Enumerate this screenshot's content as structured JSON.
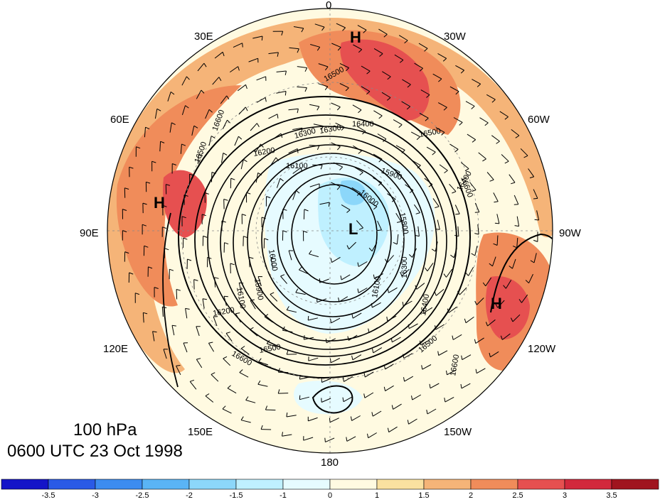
{
  "map": {
    "projection": "north-polar-stereographic",
    "level": "100 hPa",
    "valid_time": "0600 UTC 23 Oct 1998",
    "longitude_labels": [
      {
        "id": "lon-0",
        "text": "0"
      },
      {
        "id": "lon-30w",
        "text": "30W"
      },
      {
        "id": "lon-60w",
        "text": "60W"
      },
      {
        "id": "lon-90w",
        "text": "90W"
      },
      {
        "id": "lon-120w",
        "text": "120W"
      },
      {
        "id": "lon-150w",
        "text": "150W"
      },
      {
        "id": "lon-180",
        "text": "180"
      },
      {
        "id": "lon-150e",
        "text": "150E"
      },
      {
        "id": "lon-120e",
        "text": "120E"
      },
      {
        "id": "lon-90e",
        "text": "90E"
      },
      {
        "id": "lon-60e",
        "text": "60E"
      },
      {
        "id": "lon-30e",
        "text": "30E"
      }
    ],
    "pressure_centers": [
      {
        "id": "high-north-atlantic",
        "text": "H"
      },
      {
        "id": "high-central-asia",
        "text": "H"
      },
      {
        "id": "high-north-america",
        "text": "H"
      },
      {
        "id": "low-polar",
        "text": "L"
      }
    ],
    "contour_labels": [
      "16500",
      "16600",
      "16400",
      "16300",
      "16200",
      "16100",
      "15900",
      "15800",
      "15900",
      "16000",
      "16100",
      "16300",
      "16400",
      "16500",
      "16600",
      "16500",
      "16600",
      "16500",
      "16600",
      "16000",
      "16100",
      "16200",
      "16300",
      "16400",
      "16500"
    ],
    "colorbar": {
      "tick_labels": [
        "-3.5",
        "-3",
        "-2.5",
        "-2",
        "-1.5",
        "-1",
        "0",
        "1",
        "1.5",
        "2",
        "2.5",
        "3",
        "3.5"
      ],
      "colors": [
        "#1414c8",
        "#2a5ae6",
        "#3c8cf0",
        "#5ab4f5",
        "#8cd7fa",
        "#bff0ff",
        "#e6fbff",
        "#fffae1",
        "#fae1a0",
        "#f5b478",
        "#f08c5a",
        "#e65050",
        "#d2283c",
        "#a0141e"
      ]
    }
  }
}
